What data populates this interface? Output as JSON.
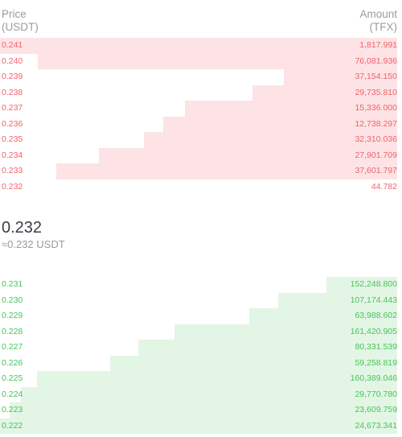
{
  "header": {
    "price_label": "Price",
    "price_unit": "(USDT)",
    "amount_label": "Amount",
    "amount_unit": "(TFX)"
  },
  "colors": {
    "ask_text": "#f0636b",
    "ask_depth": "#fde3e5",
    "bid_text": "#48c35a",
    "bid_depth": "#e3f6e5"
  },
  "asks": [
    {
      "price": "0.241",
      "amount": "1,817.991",
      "depth": 1.0
    },
    {
      "price": "0.240",
      "amount": "76,081.936",
      "depth": 0.905
    },
    {
      "price": "0.239",
      "amount": "37,154.150",
      "depth": 0.286
    },
    {
      "price": "0.238",
      "amount": "29,735.810",
      "depth": 0.364
    },
    {
      "price": "0.237",
      "amount": "15,336.000",
      "depth": 0.534
    },
    {
      "price": "0.236",
      "amount": "12,738.297",
      "depth": 0.589
    },
    {
      "price": "0.235",
      "amount": "32,310.036",
      "depth": 0.638
    },
    {
      "price": "0.234",
      "amount": "27,901.709",
      "depth": 0.751
    },
    {
      "price": "0.233",
      "amount": "37,601.797",
      "depth": 0.859
    },
    {
      "price": "0.232",
      "amount": "44.782",
      "depth": 0.0
    }
  ],
  "mid": {
    "last_price": "0.232",
    "approx": "≈0.232 USDT"
  },
  "bids": [
    {
      "price": "0.231",
      "amount": "152,248.800",
      "depth": 0.178
    },
    {
      "price": "0.230",
      "amount": "107,174.443",
      "depth": 0.3
    },
    {
      "price": "0.229",
      "amount": "63,988.602",
      "depth": 0.373
    },
    {
      "price": "0.228",
      "amount": "161,420.905",
      "depth": 0.561
    },
    {
      "price": "0.227",
      "amount": "80,331.539",
      "depth": 0.652
    },
    {
      "price": "0.226",
      "amount": "59,258.819",
      "depth": 0.722
    },
    {
      "price": "0.225",
      "amount": "160,389.046",
      "depth": 0.907
    },
    {
      "price": "0.224",
      "amount": "29,770.780",
      "depth": 0.947
    },
    {
      "price": "0.223",
      "amount": "23,609.759",
      "depth": 0.976
    },
    {
      "price": "0.222",
      "amount": "24,673.341",
      "depth": 1.0
    }
  ]
}
